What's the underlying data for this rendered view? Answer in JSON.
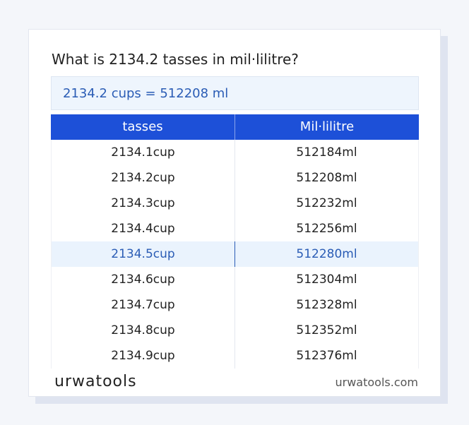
{
  "title": "What is 2134.2 tasses in mil·lilitre?",
  "result": "2134.2 cups = 512208 ml",
  "table": {
    "headers": [
      "tasses",
      "Mil·lilitre"
    ],
    "rows": [
      [
        "2134.1cup",
        "512184ml"
      ],
      [
        "2134.2cup",
        "512208ml"
      ],
      [
        "2134.3cup",
        "512232ml"
      ],
      [
        "2134.4cup",
        "512256ml"
      ],
      [
        "2134.5cup",
        "512280ml"
      ],
      [
        "2134.6cup",
        "512304ml"
      ],
      [
        "2134.7cup",
        "512328ml"
      ],
      [
        "2134.8cup",
        "512352ml"
      ],
      [
        "2134.9cup",
        "512376ml"
      ]
    ]
  },
  "footer": {
    "logo": "urwatools",
    "site": "urwatools.com"
  }
}
